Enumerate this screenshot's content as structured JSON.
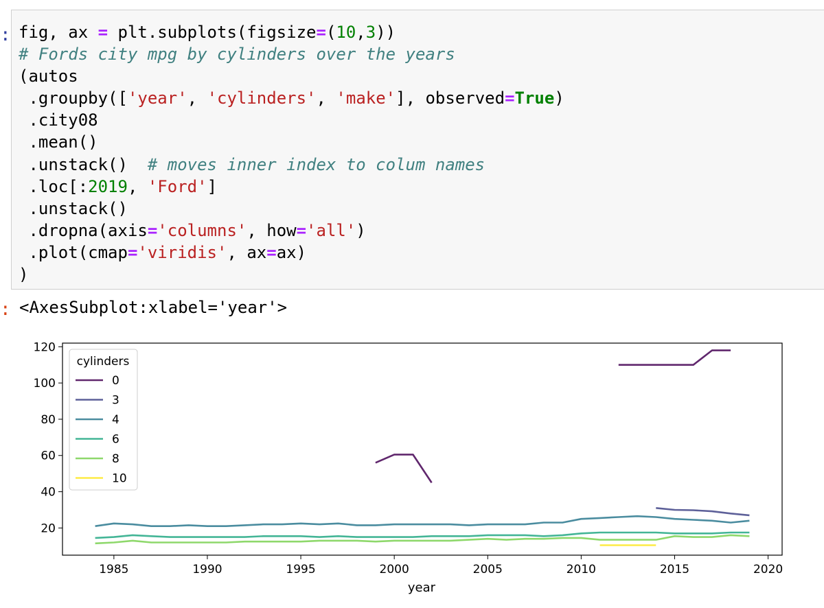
{
  "cell": {
    "input_prompt": ":",
    "output_prompt": ":",
    "code_lines": [
      [
        {
          "t": "fig, ax "
        },
        {
          "t": "=",
          "c": "op"
        },
        {
          "t": " plt.subplots(figsize"
        },
        {
          "t": "=",
          "c": "op"
        },
        {
          "t": "("
        },
        {
          "t": "10",
          "c": "num"
        },
        {
          "t": ","
        },
        {
          "t": "3",
          "c": "num"
        },
        {
          "t": "))"
        }
      ],
      [
        {
          "t": "# Fords city mpg by cylinders over the years",
          "c": "cmt"
        }
      ],
      [
        {
          "t": "(autos"
        }
      ],
      [
        {
          "t": " .groupby(["
        },
        {
          "t": "'year'",
          "c": "str"
        },
        {
          "t": ", "
        },
        {
          "t": "'cylinders'",
          "c": "str"
        },
        {
          "t": ", "
        },
        {
          "t": "'make'",
          "c": "str"
        },
        {
          "t": "], observed"
        },
        {
          "t": "=",
          "c": "op"
        },
        {
          "t": "True",
          "c": "kw"
        },
        {
          "t": ")"
        }
      ],
      [
        {
          "t": " .city08"
        }
      ],
      [
        {
          "t": " .mean()"
        }
      ],
      [
        {
          "t": " .unstack()  "
        },
        {
          "t": "# moves inner index to colum names",
          "c": "cmt"
        }
      ],
      [
        {
          "t": " .loc[:"
        },
        {
          "t": "2019",
          "c": "num"
        },
        {
          "t": ", "
        },
        {
          "t": "'Ford'",
          "c": "str"
        },
        {
          "t": "]"
        }
      ],
      [
        {
          "t": " .unstack()"
        }
      ],
      [
        {
          "t": " .dropna(axis"
        },
        {
          "t": "=",
          "c": "op"
        },
        {
          "t": "'columns'",
          "c": "str"
        },
        {
          "t": ", how"
        },
        {
          "t": "=",
          "c": "op"
        },
        {
          "t": "'all'",
          "c": "str"
        },
        {
          "t": ")"
        }
      ],
      [
        {
          "t": " .plot(cmap"
        },
        {
          "t": "=",
          "c": "op"
        },
        {
          "t": "'viridis'",
          "c": "str"
        },
        {
          "t": ", ax"
        },
        {
          "t": "=",
          "c": "op"
        },
        {
          "t": "ax)"
        }
      ],
      [
        {
          "t": ")"
        }
      ]
    ],
    "output_text": "<AxesSubplot:xlabel='year'>"
  },
  "chart_data": {
    "type": "line",
    "title": "",
    "xlabel": "year",
    "ylabel": "",
    "xlim": [
      1982.25,
      2020.75
    ],
    "ylim": [
      5,
      122
    ],
    "xticks": [
      1985,
      1990,
      1995,
      2000,
      2005,
      2010,
      2015,
      2020
    ],
    "yticks": [
      20,
      40,
      60,
      80,
      100,
      120
    ],
    "grid": false,
    "legend": {
      "title": "cylinders",
      "position": "top-left"
    },
    "series": [
      {
        "name": "0",
        "color": "#440154",
        "segments": [
          [
            [
              1999,
              56
            ],
            [
              2000,
              60.5
            ],
            [
              2001,
              60.5
            ],
            [
              2002,
              45
            ]
          ],
          [
            [
              2012,
              110
            ],
            [
              2013,
              110
            ],
            [
              2014,
              110
            ],
            [
              2015,
              110
            ],
            [
              2016,
              110
            ],
            [
              2017,
              118
            ],
            [
              2018,
              118
            ]
          ]
        ]
      },
      {
        "name": "3",
        "color": "#414487",
        "segments": [
          [
            [
              2014,
              31
            ],
            [
              2015,
              30
            ],
            [
              2016,
              29.8
            ],
            [
              2017,
              29.2
            ],
            [
              2018,
              28
            ],
            [
              2019,
              27
            ]
          ]
        ]
      },
      {
        "name": "4",
        "color": "#2a788e",
        "segments": [
          [
            [
              1984,
              21
            ],
            [
              1985,
              22.5
            ],
            [
              1986,
              22
            ],
            [
              1987,
              21
            ],
            [
              1988,
              21
            ],
            [
              1989,
              21.5
            ],
            [
              1990,
              21
            ],
            [
              1991,
              21
            ],
            [
              1992,
              21.5
            ],
            [
              1993,
              22
            ],
            [
              1994,
              22
            ],
            [
              1995,
              22.5
            ],
            [
              1996,
              22
            ],
            [
              1997,
              22.5
            ],
            [
              1998,
              21.5
            ],
            [
              1999,
              21.5
            ],
            [
              2000,
              22
            ],
            [
              2001,
              22
            ],
            [
              2002,
              22
            ],
            [
              2003,
              22
            ],
            [
              2004,
              21.5
            ],
            [
              2005,
              22
            ],
            [
              2006,
              22
            ],
            [
              2007,
              22
            ],
            [
              2008,
              23
            ],
            [
              2009,
              23
            ],
            [
              2010,
              25
            ],
            [
              2011,
              25.5
            ],
            [
              2012,
              26
            ],
            [
              2013,
              26.5
            ],
            [
              2014,
              26
            ],
            [
              2015,
              25
            ],
            [
              2016,
              24.5
            ],
            [
              2017,
              24
            ],
            [
              2018,
              23
            ],
            [
              2019,
              24
            ]
          ]
        ]
      },
      {
        "name": "6",
        "color": "#22a884",
        "segments": [
          [
            [
              1984,
              14.5
            ],
            [
              1985,
              15
            ],
            [
              1986,
              16
            ],
            [
              1987,
              15.5
            ],
            [
              1988,
              15
            ],
            [
              1989,
              15
            ],
            [
              1990,
              15
            ],
            [
              1991,
              15
            ],
            [
              1992,
              15
            ],
            [
              1993,
              15.5
            ],
            [
              1994,
              15.5
            ],
            [
              1995,
              15.5
            ],
            [
              1996,
              15
            ],
            [
              1997,
              15.5
            ],
            [
              1998,
              15
            ],
            [
              1999,
              15
            ],
            [
              2000,
              15
            ],
            [
              2001,
              15
            ],
            [
              2002,
              15.5
            ],
            [
              2003,
              15.5
            ],
            [
              2004,
              15.5
            ],
            [
              2005,
              16
            ],
            [
              2006,
              16
            ],
            [
              2007,
              16
            ],
            [
              2008,
              15.5
            ],
            [
              2009,
              16
            ],
            [
              2010,
              17
            ],
            [
              2011,
              17.5
            ],
            [
              2012,
              17.5
            ],
            [
              2013,
              17.5
            ],
            [
              2014,
              17.5
            ],
            [
              2015,
              17
            ],
            [
              2016,
              17
            ],
            [
              2017,
              17
            ],
            [
              2018,
              17.5
            ],
            [
              2019,
              17.5
            ]
          ]
        ]
      },
      {
        "name": "8",
        "color": "#7ad151",
        "segments": [
          [
            [
              1984,
              11.5
            ],
            [
              1985,
              12
            ],
            [
              1986,
              13
            ],
            [
              1987,
              12
            ],
            [
              1988,
              12
            ],
            [
              1989,
              12
            ],
            [
              1990,
              12
            ],
            [
              1991,
              12
            ],
            [
              1992,
              12.5
            ],
            [
              1993,
              12.5
            ],
            [
              1994,
              12.5
            ],
            [
              1995,
              12.5
            ],
            [
              1996,
              13
            ],
            [
              1997,
              13
            ],
            [
              1998,
              13
            ],
            [
              1999,
              12.5
            ],
            [
              2000,
              13
            ],
            [
              2001,
              13
            ],
            [
              2002,
              13
            ],
            [
              2003,
              13
            ],
            [
              2004,
              13.5
            ],
            [
              2005,
              14
            ],
            [
              2006,
              13.5
            ],
            [
              2007,
              14
            ],
            [
              2008,
              14
            ],
            [
              2009,
              14.5
            ],
            [
              2010,
              14.5
            ],
            [
              2011,
              13.5
            ],
            [
              2012,
              13.5
            ],
            [
              2013,
              13.5
            ],
            [
              2014,
              13.5
            ],
            [
              2015,
              15.5
            ],
            [
              2016,
              15
            ],
            [
              2017,
              15
            ],
            [
              2018,
              16
            ],
            [
              2019,
              15.5
            ]
          ]
        ]
      },
      {
        "name": "10",
        "color": "#fde725",
        "segments": [
          [
            [
              2011,
              10.5
            ],
            [
              2012,
              10.5
            ],
            [
              2013,
              10.5
            ],
            [
              2014,
              10.5
            ]
          ]
        ]
      }
    ]
  }
}
